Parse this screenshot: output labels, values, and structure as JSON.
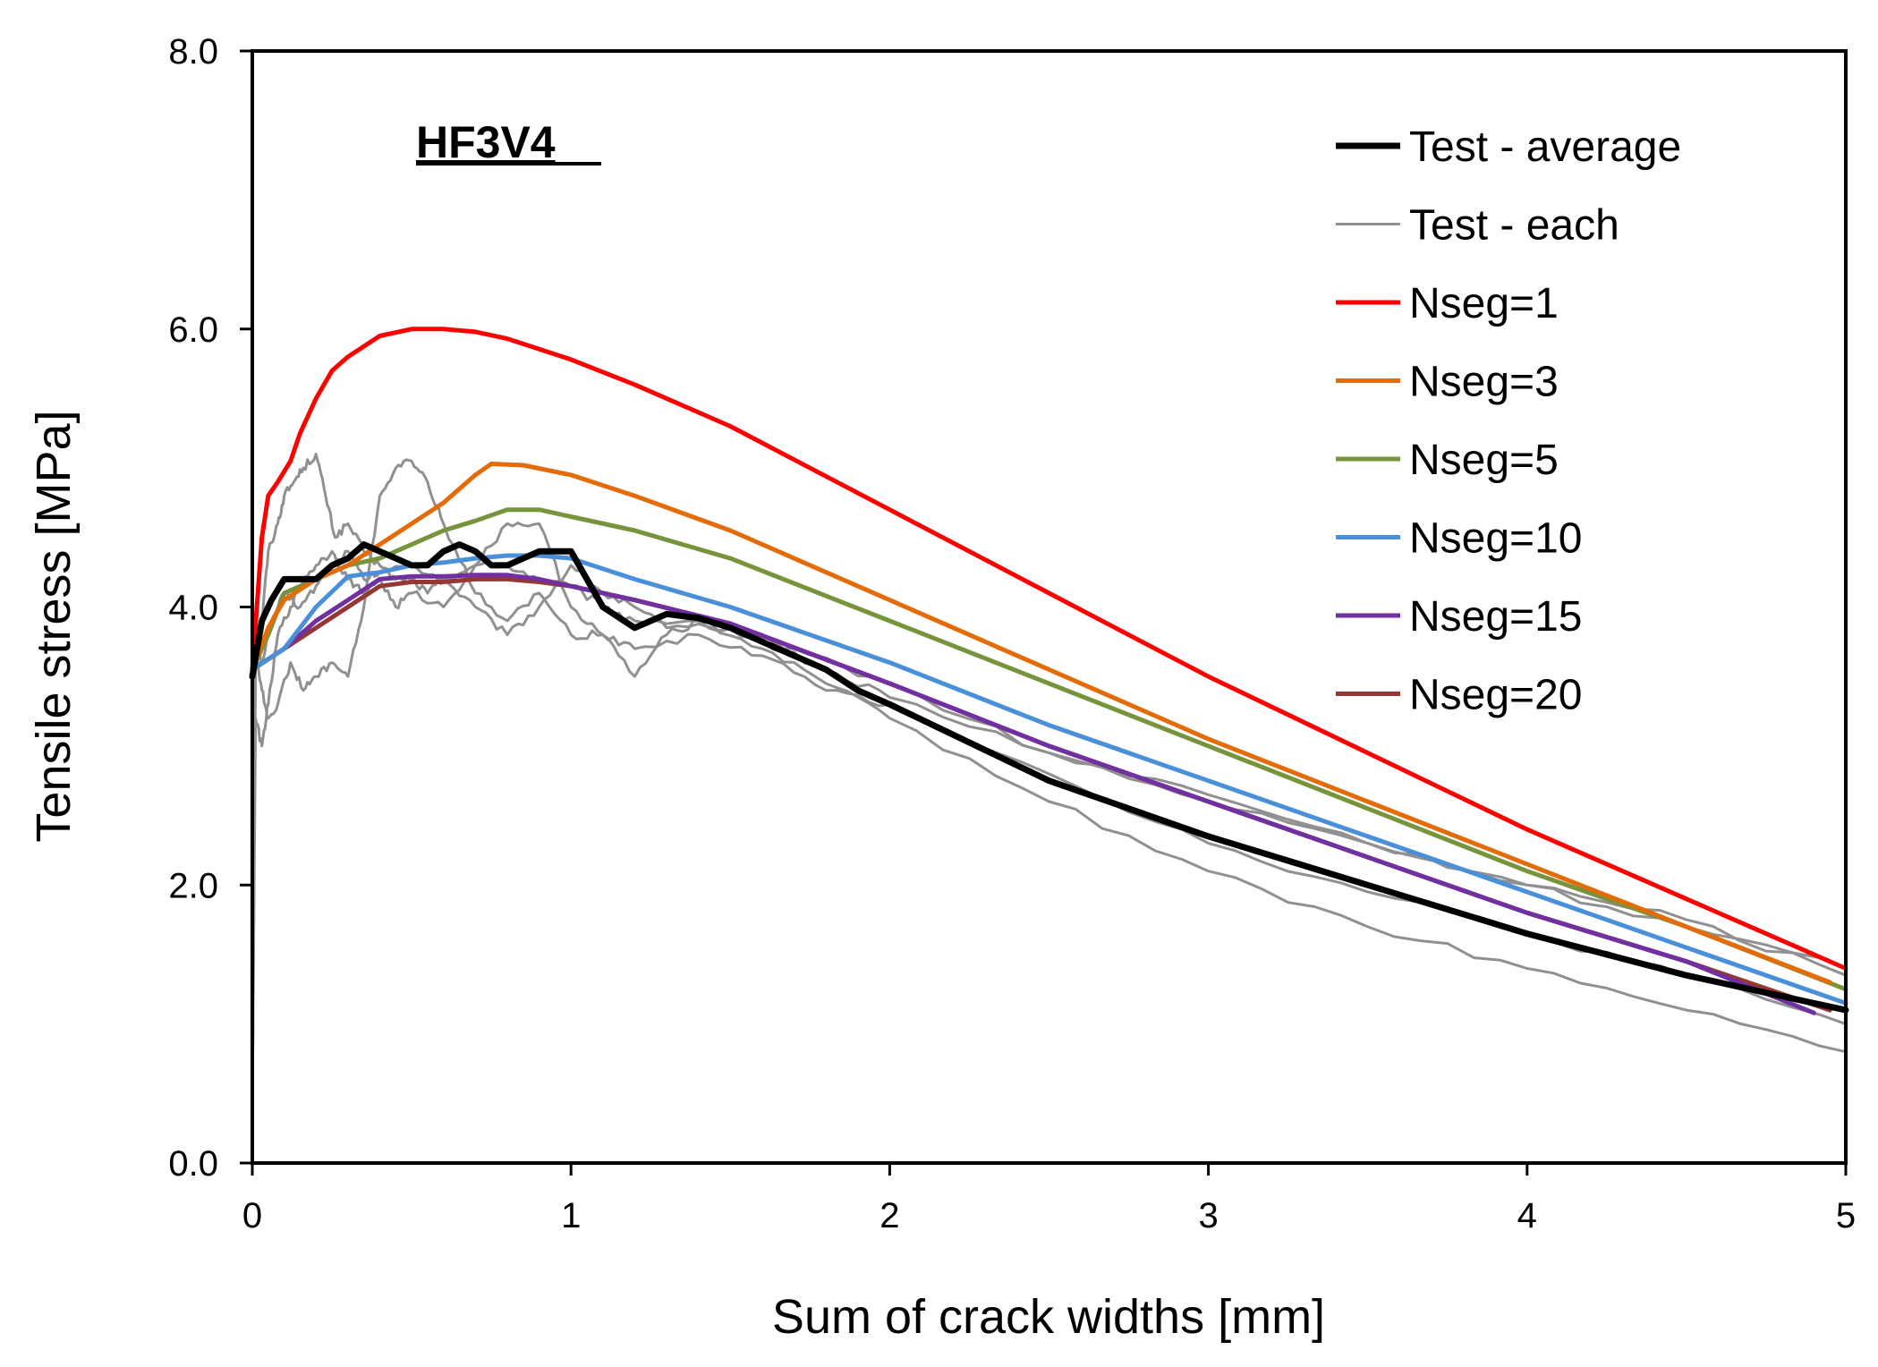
{
  "chart_data": {
    "type": "line",
    "title": "",
    "annotation": "HF3V4",
    "xlabel": "Sum of crack widths [mm]",
    "ylabel": "Tensile stress [MPa]",
    "xlim": [
      0,
      5
    ],
    "ylim": [
      0,
      8
    ],
    "xticks": [
      0,
      1,
      2,
      3,
      4,
      5
    ],
    "xtick_labels": [
      "0",
      "1",
      "2",
      "3",
      "4",
      "5"
    ],
    "yticks": [
      0,
      2,
      4,
      6,
      8
    ],
    "ytick_labels": [
      "0.0",
      "2.0",
      "4.0",
      "6.0",
      "8.0"
    ],
    "grid": false,
    "legend_position": "top-right",
    "series": [
      {
        "name": "Test - each",
        "color": "#909090",
        "width": 3,
        "jagged": true,
        "legend_index": 1,
        "x": [
          0,
          0.01,
          0.03,
          0.05,
          0.08,
          0.1,
          0.13,
          0.16,
          0.2,
          0.23,
          0.26,
          0.3,
          0.35,
          0.4,
          0.45,
          0.5,
          0.55,
          0.6,
          0.7,
          0.8,
          0.9,
          1.0,
          1.1,
          1.2,
          1.4,
          1.6,
          1.8,
          2.0,
          2.5,
          3.0,
          3.5,
          4.0,
          4.5,
          5.0
        ],
        "y": [
          0.3,
          3.6,
          3.9,
          4.4,
          4.6,
          4.8,
          4.9,
          5.0,
          5.1,
          4.8,
          4.5,
          4.6,
          4.4,
          4.3,
          4.2,
          4.2,
          4.1,
          4.2,
          4.3,
          4.3,
          4.2,
          4.15,
          4.0,
          3.9,
          3.9,
          3.7,
          3.45,
          3.2,
          2.6,
          2.1,
          1.7,
          1.4,
          1.1,
          0.8
        ]
      },
      {
        "name": "Test - each",
        "color": "#909090",
        "width": 3,
        "jagged": true,
        "legend_index": -1,
        "x": [
          0,
          0.01,
          0.03,
          0.05,
          0.08,
          0.12,
          0.16,
          0.2,
          0.25,
          0.3,
          0.35,
          0.4,
          0.45,
          0.5,
          0.55,
          0.6,
          0.7,
          0.8,
          0.9,
          1.0,
          1.1,
          1.2,
          1.4,
          1.6,
          1.8,
          2.0,
          2.5,
          3.0,
          3.5,
          4.0,
          4.5,
          5.0
        ],
        "y": [
          0.5,
          3.7,
          3.4,
          3.2,
          3.3,
          3.6,
          3.4,
          3.5,
          3.6,
          3.5,
          4.0,
          4.8,
          5.0,
          5.05,
          4.9,
          4.6,
          4.1,
          3.9,
          4.1,
          3.8,
          3.8,
          3.7,
          3.8,
          3.65,
          3.4,
          3.3,
          2.8,
          2.3,
          1.95,
          1.65,
          1.35,
          1.0
        ]
      },
      {
        "name": "Test - each",
        "color": "#909090",
        "width": 3,
        "jagged": true,
        "legend_index": -1,
        "x": [
          0,
          0.01,
          0.03,
          0.05,
          0.08,
          0.12,
          0.16,
          0.2,
          0.25,
          0.3,
          0.35,
          0.4,
          0.45,
          0.5,
          0.6,
          0.7,
          0.8,
          0.9,
          1.0,
          1.1,
          1.2,
          1.3,
          1.4,
          1.6,
          1.8,
          2.0,
          2.5,
          3.0,
          3.5,
          4.0,
          4.5,
          5.0
        ],
        "y": [
          0.4,
          3.2,
          3.0,
          3.3,
          3.8,
          4.0,
          4.2,
          4.3,
          4.4,
          4.2,
          4.1,
          4.2,
          4.0,
          4.1,
          4.0,
          4.3,
          4.6,
          4.6,
          4.0,
          3.8,
          3.5,
          3.8,
          3.9,
          3.75,
          3.55,
          3.35,
          2.95,
          2.65,
          2.3,
          2.0,
          1.75,
          1.35
        ]
      },
      {
        "name": "Test - each",
        "color": "#909090",
        "width": 3,
        "jagged": true,
        "legend_index": -1,
        "x": [
          0,
          0.01,
          0.03,
          0.06,
          0.1,
          0.15,
          0.2,
          0.25,
          0.3,
          0.35,
          0.4,
          0.5,
          0.6,
          0.7,
          0.8,
          0.9,
          1.0,
          1.1,
          1.2,
          1.3,
          1.5,
          1.7,
          2.0,
          2.5,
          3.0,
          3.5,
          4.0,
          4.5,
          5.0
        ],
        "y": [
          0.4,
          3.8,
          3.6,
          3.9,
          4.1,
          4.0,
          4.15,
          4.3,
          4.4,
          4.2,
          4.25,
          4.3,
          4.2,
          4.0,
          3.8,
          4.0,
          4.3,
          4.1,
          4.0,
          3.85,
          3.85,
          3.7,
          3.45,
          2.95,
          2.6,
          2.3,
          2.0,
          1.7,
          1.4
        ]
      },
      {
        "name": "Nseg=20",
        "color": "#953735",
        "width": 5,
        "jagged": false,
        "legend_index": 7,
        "x": [
          0,
          0.1,
          0.2,
          0.3,
          0.4,
          0.5,
          0.6,
          0.7,
          0.8,
          0.9,
          1.0,
          1.2,
          1.5,
          2.0,
          2.5,
          3.0,
          3.5,
          4.0,
          4.5,
          4.95
        ],
        "y": [
          3.55,
          3.7,
          3.85,
          4.0,
          4.15,
          4.18,
          4.18,
          4.2,
          4.2,
          4.18,
          4.15,
          4.05,
          3.88,
          3.45,
          3.0,
          2.6,
          2.2,
          1.8,
          1.45,
          1.1
        ]
      },
      {
        "name": "Nseg=15",
        "color": "#7030A0",
        "width": 5,
        "jagged": false,
        "legend_index": 6,
        "x": [
          0,
          0.1,
          0.2,
          0.3,
          0.4,
          0.5,
          0.6,
          0.7,
          0.8,
          0.9,
          1.0,
          1.2,
          1.5,
          2.0,
          2.5,
          3.0,
          3.5,
          4.0,
          4.5,
          4.9
        ],
        "y": [
          3.55,
          3.7,
          3.9,
          4.05,
          4.2,
          4.22,
          4.22,
          4.23,
          4.23,
          4.2,
          4.15,
          4.05,
          3.88,
          3.45,
          3.0,
          2.6,
          2.2,
          1.8,
          1.45,
          1.08
        ]
      },
      {
        "name": "Nseg=10",
        "color": "#4A90D9",
        "width": 5,
        "jagged": false,
        "legend_index": 5,
        "x": [
          0,
          0.1,
          0.2,
          0.3,
          0.4,
          0.5,
          0.6,
          0.7,
          0.8,
          0.9,
          1.0,
          1.2,
          1.5,
          2.0,
          2.5,
          3.0,
          3.5,
          4.0,
          4.5,
          5.0
        ],
        "y": [
          3.55,
          3.7,
          4.0,
          4.22,
          4.25,
          4.3,
          4.32,
          4.35,
          4.37,
          4.37,
          4.35,
          4.2,
          4.0,
          3.6,
          3.15,
          2.75,
          2.35,
          1.95,
          1.55,
          1.15
        ]
      },
      {
        "name": "Nseg=5",
        "color": "#77933C",
        "width": 5,
        "jagged": false,
        "legend_index": 4,
        "x": [
          0,
          0.05,
          0.1,
          0.2,
          0.3,
          0.4,
          0.5,
          0.6,
          0.7,
          0.8,
          0.9,
          1.0,
          1.2,
          1.5,
          2.0,
          2.5,
          3.0,
          3.5,
          4.0,
          4.5,
          5.0
        ],
        "y": [
          3.55,
          3.8,
          4.1,
          4.2,
          4.3,
          4.35,
          4.45,
          4.55,
          4.62,
          4.7,
          4.7,
          4.65,
          4.55,
          4.35,
          3.9,
          3.45,
          3.0,
          2.55,
          2.1,
          1.7,
          1.25
        ]
      },
      {
        "name": "Nseg=3",
        "color": "#E36C09",
        "width": 5,
        "jagged": false,
        "legend_index": 3,
        "x": [
          0,
          0.05,
          0.1,
          0.2,
          0.3,
          0.4,
          0.5,
          0.6,
          0.7,
          0.75,
          0.85,
          1.0,
          1.2,
          1.5,
          2.0,
          2.5,
          3.0,
          3.5,
          4.0,
          4.5,
          4.95
        ],
        "y": [
          3.55,
          3.85,
          4.05,
          4.2,
          4.3,
          4.45,
          4.6,
          4.75,
          4.95,
          5.03,
          5.02,
          4.95,
          4.8,
          4.55,
          4.05,
          3.55,
          3.05,
          2.6,
          2.15,
          1.7,
          1.3
        ]
      },
      {
        "name": "Nseg=1",
        "color": "#FF0000",
        "width": 5,
        "jagged": false,
        "legend_index": 2,
        "x": [
          0,
          0.03,
          0.05,
          0.08,
          0.12,
          0.15,
          0.2,
          0.25,
          0.3,
          0.4,
          0.5,
          0.6,
          0.7,
          0.8,
          1.0,
          1.2,
          1.5,
          2.0,
          2.5,
          3.0,
          3.5,
          4.0,
          4.5,
          5.0
        ],
        "y": [
          3.55,
          4.5,
          4.8,
          4.9,
          5.05,
          5.25,
          5.5,
          5.7,
          5.8,
          5.95,
          6.0,
          6.0,
          5.98,
          5.93,
          5.78,
          5.6,
          5.3,
          4.7,
          4.1,
          3.5,
          2.95,
          2.4,
          1.9,
          1.4
        ]
      },
      {
        "name": "Test - average",
        "color": "#000000",
        "width": 7,
        "jagged": false,
        "legend_index": 0,
        "x": [
          0,
          0.03,
          0.06,
          0.1,
          0.15,
          0.2,
          0.25,
          0.3,
          0.35,
          0.4,
          0.45,
          0.5,
          0.55,
          0.6,
          0.65,
          0.7,
          0.75,
          0.8,
          0.9,
          1.0,
          1.05,
          1.1,
          1.2,
          1.3,
          1.4,
          1.5,
          1.6,
          1.7,
          1.8,
          1.9,
          2.0,
          2.5,
          3.0,
          3.5,
          4.0,
          4.5,
          5.0
        ],
        "y": [
          3.5,
          3.9,
          4.05,
          4.2,
          4.2,
          4.2,
          4.3,
          4.35,
          4.45,
          4.4,
          4.35,
          4.3,
          4.3,
          4.4,
          4.45,
          4.4,
          4.3,
          4.3,
          4.4,
          4.4,
          4.2,
          4.0,
          3.85,
          3.95,
          3.92,
          3.85,
          3.75,
          3.65,
          3.55,
          3.4,
          3.3,
          2.75,
          2.35,
          2.0,
          1.65,
          1.35,
          1.1
        ]
      }
    ]
  }
}
